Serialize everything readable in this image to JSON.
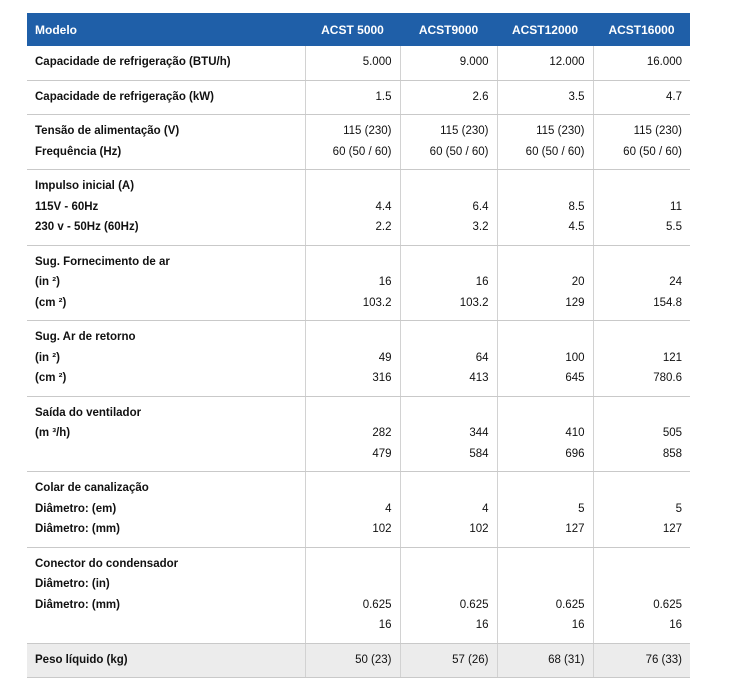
{
  "header": {
    "label": "Modelo",
    "models": [
      "ACST 5000",
      "ACST9000",
      "ACST12000",
      "ACST16000"
    ]
  },
  "rows": [
    {
      "labels": [
        "Capacidade de refrigeração (BTU/h)"
      ],
      "values": [
        [
          "5.000"
        ],
        [
          "9.000"
        ],
        [
          "12.000"
        ],
        [
          "16.000"
        ]
      ]
    },
    {
      "labels": [
        "Capacidade de refrigeração (kW)"
      ],
      "values": [
        [
          "1.5"
        ],
        [
          "2.6"
        ],
        [
          "3.5"
        ],
        [
          "4.7"
        ]
      ]
    },
    {
      "labels": [
        "Tensão de alimentação (V)",
        "Frequência (Hz)"
      ],
      "values": [
        [
          "115 (230)",
          "60 (50 / 60)"
        ],
        [
          "115 (230)",
          "60 (50 / 60)"
        ],
        [
          "115 (230)",
          "60 (50 / 60)"
        ],
        [
          "115 (230)",
          "60 (50 / 60)"
        ]
      ]
    },
    {
      "labels": [
        "Impulso inicial (A)",
        "115V - 60Hz",
        "230 v - 50Hz (60Hz)"
      ],
      "values": [
        [
          "",
          "4.4",
          "2.2"
        ],
        [
          "",
          "6.4",
          "3.2"
        ],
        [
          "",
          "8.5",
          "4.5"
        ],
        [
          "",
          "11",
          "5.5"
        ]
      ]
    },
    {
      "labels": [
        "Sug. Fornecimento de ar",
        "(in ²)",
        "(cm ²)"
      ],
      "values": [
        [
          "",
          "16",
          "103.2"
        ],
        [
          "",
          "16",
          "103.2"
        ],
        [
          "",
          "20",
          "129"
        ],
        [
          "",
          "24",
          "154.8"
        ]
      ]
    },
    {
      "labels": [
        "Sug. Ar de retorno",
        "(in ²)",
        "(cm ²)"
      ],
      "values": [
        [
          "",
          "49",
          "316"
        ],
        [
          "",
          "64",
          "413"
        ],
        [
          "",
          "100",
          "645"
        ],
        [
          "",
          "121",
          "780.6"
        ]
      ]
    },
    {
      "labels": [
        "Saída do ventilador",
        "(m ³/h)",
        ""
      ],
      "values": [
        [
          "",
          "282",
          "479"
        ],
        [
          "",
          "344",
          "584"
        ],
        [
          "",
          "410",
          "696"
        ],
        [
          "",
          "505",
          "858"
        ]
      ]
    },
    {
      "labels": [
        "Colar de canalização",
        "Diâmetro: (em)",
        "Diâmetro: (mm)"
      ],
      "values": [
        [
          "",
          "4",
          "102"
        ],
        [
          "",
          "4",
          "102"
        ],
        [
          "",
          "5",
          "127"
        ],
        [
          "",
          "5",
          "127"
        ]
      ]
    },
    {
      "labels": [
        "Conector do condensador",
        "Diâmetro: (in)",
        "Diâmetro: (mm)",
        ""
      ],
      "values": [
        [
          "",
          "",
          "0.625",
          "16"
        ],
        [
          "",
          "",
          "0.625",
          "16"
        ],
        [
          "",
          "",
          "0.625",
          "16"
        ],
        [
          "",
          "",
          "0.625",
          "16"
        ]
      ]
    },
    {
      "labels": [
        "Peso líquido (kg)"
      ],
      "values": [
        [
          "50 (23)"
        ],
        [
          "57 (26)"
        ],
        [
          "68 (31)"
        ],
        [
          "76 (33)"
        ]
      ],
      "highlight": true
    }
  ]
}
